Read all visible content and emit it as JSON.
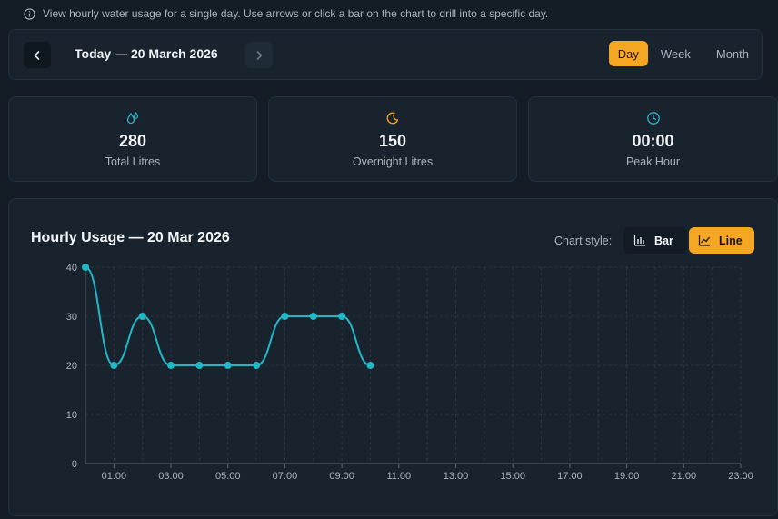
{
  "info": {
    "text": "View hourly water usage for a single day. Use arrows or click a bar on the chart to drill into a specific day.",
    "icon": "info-icon"
  },
  "nav": {
    "date_label": "Today — 20 March 2026",
    "prev_icon": "chevron-left-icon",
    "next_icon": "chevron-right-icon"
  },
  "periods": [
    {
      "label": "Day",
      "active": true
    },
    {
      "label": "Week",
      "active": false
    },
    {
      "label": "Month",
      "active": false
    }
  ],
  "stats": [
    {
      "icon": "water-drops-icon",
      "value": "280",
      "label": "Total Litres",
      "color": "#2bb5c9"
    },
    {
      "icon": "moon-icon",
      "value": "150",
      "label": "Overnight Litres",
      "color": "#f5a623"
    },
    {
      "icon": "clock-icon",
      "value": "00:00",
      "label": "Peak Hour",
      "color": "#2bb5c9"
    }
  ],
  "chart": {
    "title": "Hourly Usage — 20 Mar 2026",
    "style_label": "Chart style:",
    "style_options": [
      {
        "label": "Bar",
        "icon": "bar-chart-icon",
        "active": false
      },
      {
        "label": "Line",
        "icon": "line-chart-icon",
        "active": true
      }
    ]
  },
  "chart_data": {
    "type": "line",
    "x": [
      0,
      1,
      2,
      3,
      4,
      5,
      6,
      7,
      8,
      9,
      10
    ],
    "series": [
      {
        "values": [
          40,
          20,
          30,
          20,
          20,
          20,
          20,
          30,
          30,
          30,
          20
        ]
      }
    ],
    "xlim": [
      0,
      23
    ],
    "ylim": [
      0,
      40
    ],
    "yticks": [
      0,
      10,
      20,
      30,
      40
    ],
    "xtick_labels": [
      "01:00",
      "03:00",
      "05:00",
      "07:00",
      "09:00",
      "11:00",
      "13:00",
      "15:00",
      "17:00",
      "19:00",
      "21:00",
      "23:00"
    ],
    "xtick_hours": [
      1,
      3,
      5,
      7,
      9,
      11,
      13,
      15,
      17,
      19,
      21,
      23
    ],
    "grid": true,
    "line_color": "#22b8c8"
  }
}
